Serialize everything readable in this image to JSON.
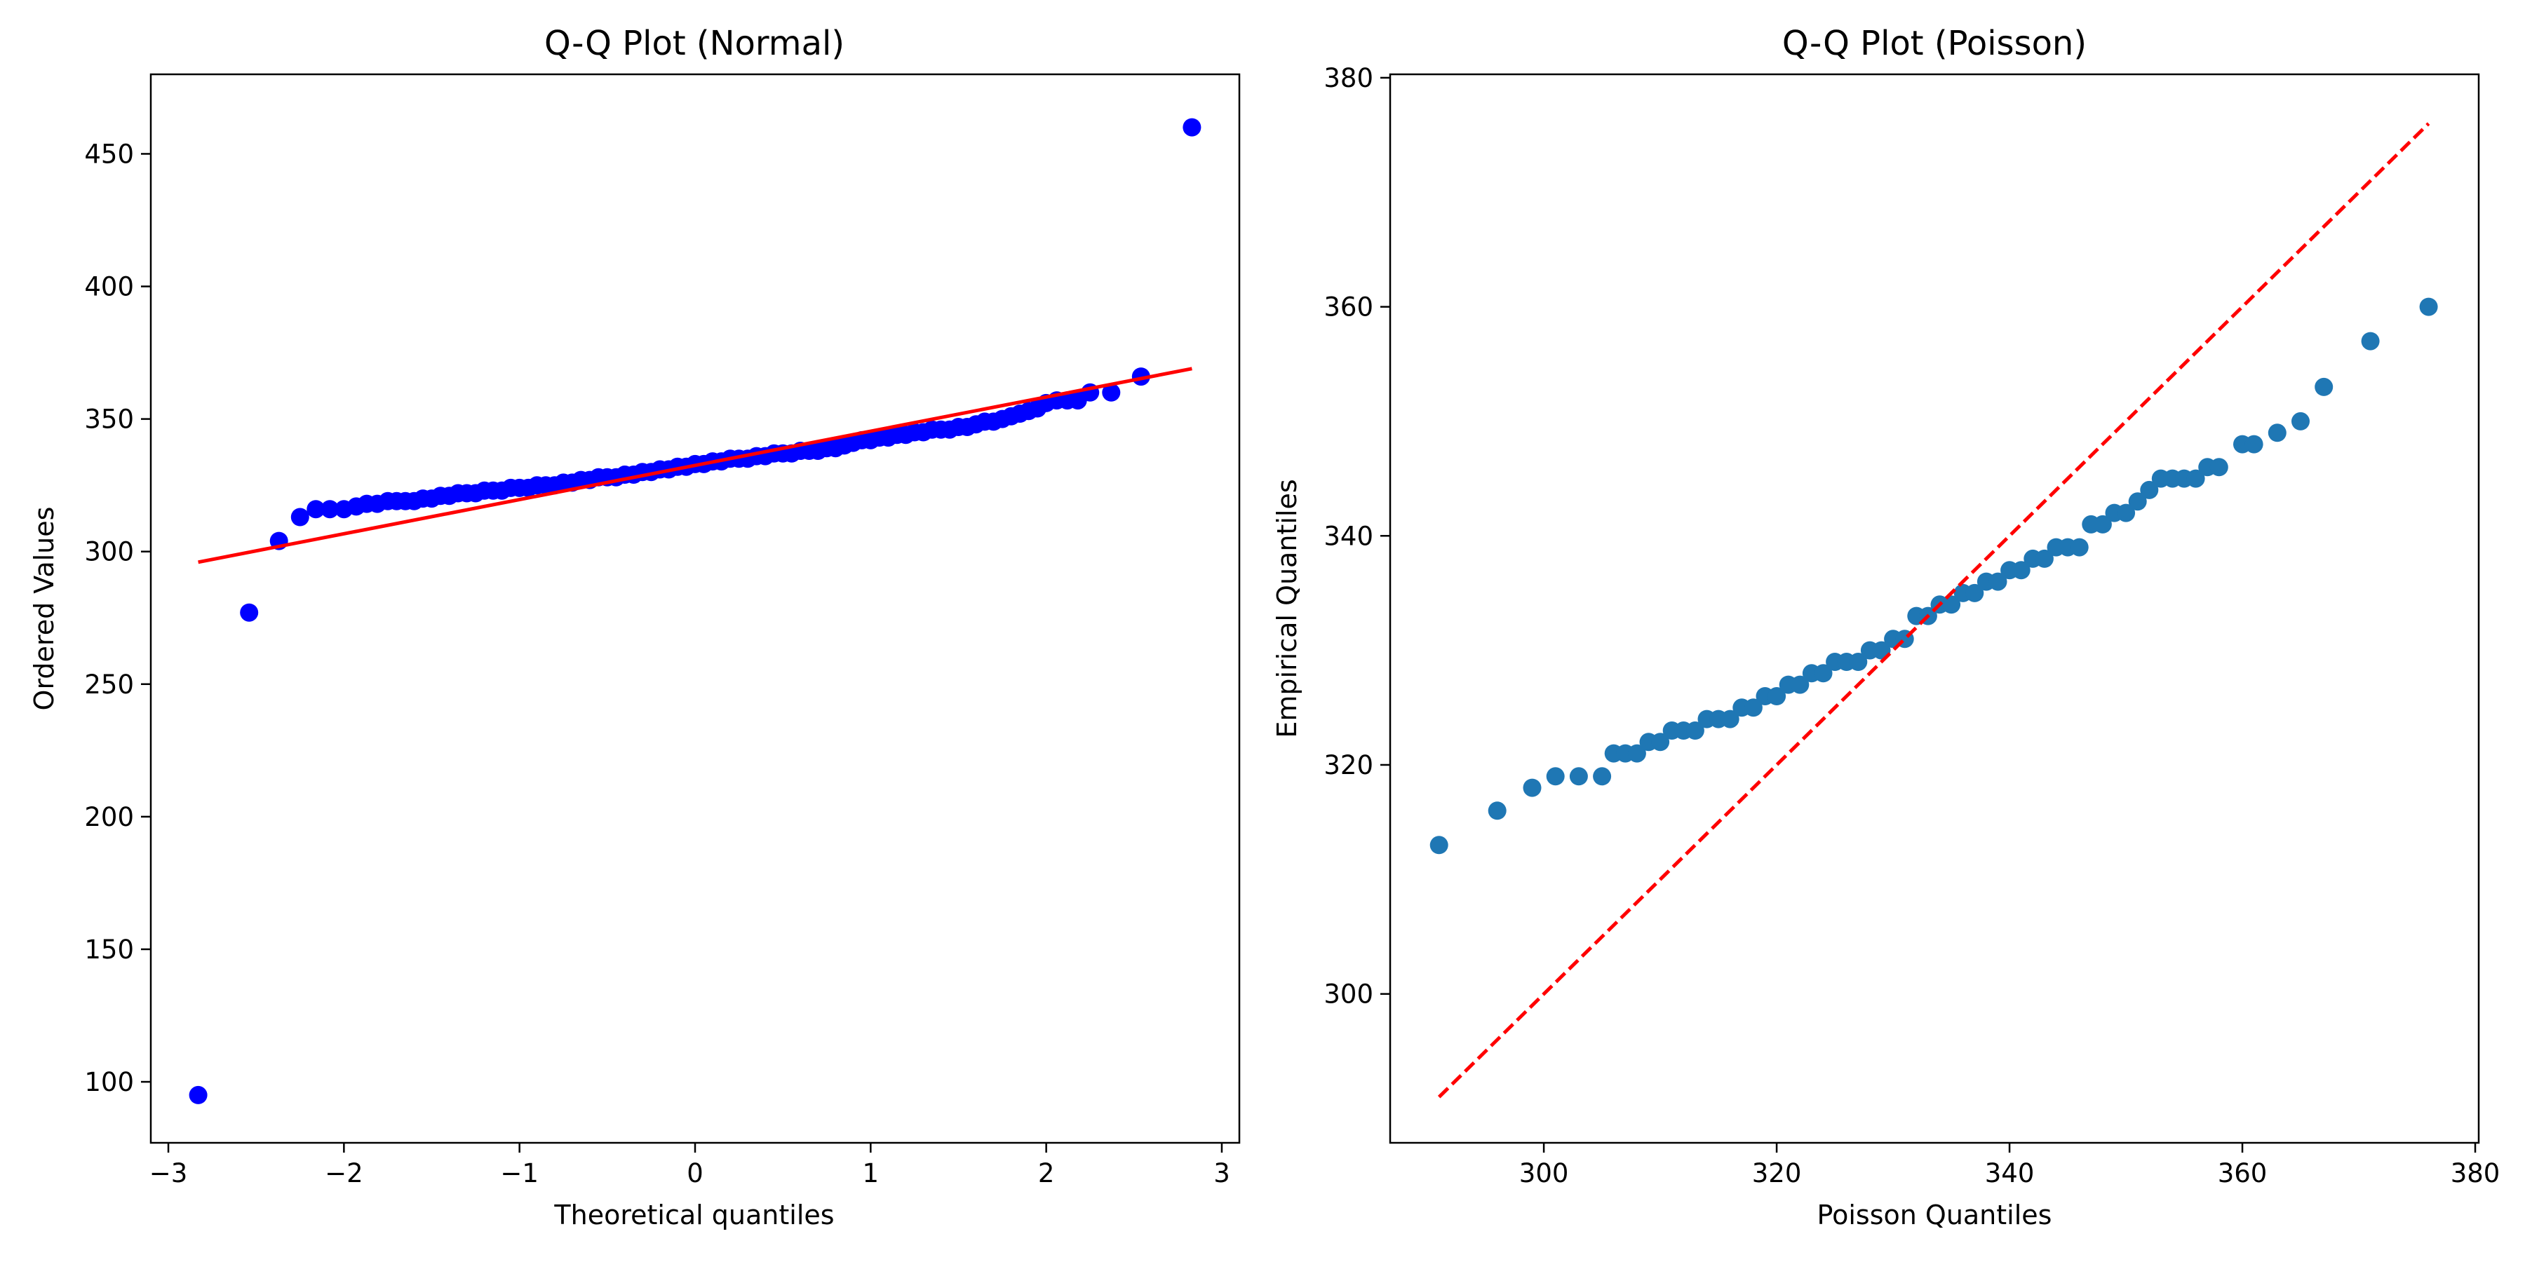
{
  "chart_data": [
    {
      "type": "scatter",
      "title": "Q-Q Plot (Normal)",
      "xlabel": "Theoretical quantiles",
      "ylabel": "Ordered Values",
      "xlim": [
        -3.1,
        3.1
      ],
      "ylim": [
        77,
        480
      ],
      "xticks": [
        -3,
        -2,
        -1,
        0,
        1,
        2,
        3
      ],
      "xtick_labels": [
        "−3",
        "−2",
        "−1",
        "0",
        "1",
        "2",
        "3"
      ],
      "yticks": [
        100,
        150,
        200,
        250,
        300,
        350,
        400,
        450
      ],
      "ytick_labels": [
        "100",
        "150",
        "200",
        "250",
        "300",
        "350",
        "400",
        "450"
      ],
      "grid": false,
      "series": [
        {
          "kind": "points",
          "color": "#0000ff",
          "x": [
            -2.83,
            -2.54,
            -2.37,
            -2.25,
            -2.16,
            -2.08,
            -2.0,
            -1.93,
            -1.87,
            -1.81,
            -1.75,
            -1.7,
            -1.65,
            -1.6,
            -1.55,
            -1.5,
            -1.45,
            -1.4,
            -1.35,
            -1.3,
            -1.25,
            -1.2,
            -1.15,
            -1.1,
            -1.05,
            -1.0,
            -0.95,
            -0.9,
            -0.85,
            -0.8,
            -0.75,
            -0.7,
            -0.65,
            -0.6,
            -0.55,
            -0.5,
            -0.45,
            -0.4,
            -0.35,
            -0.3,
            -0.25,
            -0.2,
            -0.15,
            -0.1,
            -0.05,
            0.0,
            0.05,
            0.1,
            0.15,
            0.2,
            0.25,
            0.3,
            0.35,
            0.4,
            0.45,
            0.5,
            0.55,
            0.6,
            0.65,
            0.7,
            0.75,
            0.8,
            0.85,
            0.9,
            0.95,
            1.0,
            1.05,
            1.1,
            1.15,
            1.2,
            1.25,
            1.3,
            1.35,
            1.4,
            1.45,
            1.5,
            1.55,
            1.6,
            1.65,
            1.7,
            1.75,
            1.8,
            1.85,
            1.9,
            1.95,
            2.0,
            2.06,
            2.12,
            2.18,
            2.25,
            2.37,
            2.54,
            2.83
          ],
          "y": [
            95,
            277,
            304,
            313,
            316,
            316,
            316,
            317,
            318,
            318,
            319,
            319,
            319,
            319,
            320,
            320,
            321,
            321,
            322,
            322,
            322,
            323,
            323,
            323,
            324,
            324,
            324,
            325,
            325,
            325,
            326,
            326,
            327,
            327,
            328,
            328,
            328,
            329,
            329,
            330,
            330,
            331,
            331,
            332,
            332,
            333,
            333,
            334,
            334,
            335,
            335,
            335,
            336,
            336,
            337,
            337,
            337,
            338,
            338,
            338,
            339,
            339,
            340,
            341,
            342,
            342,
            343,
            343,
            344,
            344,
            345,
            345,
            346,
            346,
            346,
            347,
            347,
            348,
            349,
            349,
            350,
            351,
            352,
            353,
            354,
            356,
            357,
            357,
            357,
            360,
            360,
            366,
            460
          ]
        },
        {
          "kind": "line",
          "color": "#ff0000",
          "style": "solid",
          "x": [
            -2.83,
            2.83
          ],
          "y": [
            296,
            369
          ]
        }
      ]
    },
    {
      "type": "scatter",
      "title": "Q-Q Plot (Poisson)",
      "xlabel": "Poisson Quantiles",
      "ylabel": "Empirical Quantiles",
      "xlim": [
        286.8,
        380.3
      ],
      "ylim": [
        287,
        380.3
      ],
      "xticks": [
        300,
        320,
        340,
        360,
        380
      ],
      "xtick_labels": [
        "300",
        "320",
        "340",
        "360",
        "380"
      ],
      "yticks": [
        300,
        320,
        340,
        360,
        380
      ],
      "ytick_labels": [
        "300",
        "320",
        "340",
        "360",
        "380"
      ],
      "grid": false,
      "series": [
        {
          "kind": "points",
          "color": "#1f77b4",
          "x": [
            291,
            296,
            299,
            301,
            303,
            305,
            306,
            307,
            308,
            309,
            310,
            311,
            312,
            313,
            314,
            315,
            316,
            317,
            318,
            319,
            320,
            321,
            322,
            323,
            324,
            325,
            326,
            327,
            328,
            329,
            330,
            331,
            332,
            333,
            334,
            335,
            336,
            337,
            338,
            339,
            340,
            341,
            342,
            343,
            344,
            345,
            346,
            347,
            348,
            349,
            350,
            351,
            352,
            353,
            354,
            355,
            356,
            357,
            358,
            360,
            361,
            363,
            365,
            367,
            371,
            376
          ],
          "y": [
            313,
            316,
            318,
            319,
            319,
            319,
            321,
            321,
            321,
            322,
            322,
            323,
            323,
            323,
            324,
            324,
            324,
            325,
            325,
            326,
            326,
            327,
            327,
            328,
            328,
            329,
            329,
            329,
            330,
            330,
            331,
            331,
            333,
            333,
            334,
            334,
            335,
            335,
            336,
            336,
            337,
            337,
            338,
            338,
            339,
            339,
            339,
            341,
            341,
            342,
            342,
            343,
            344,
            345,
            345,
            345,
            345,
            346,
            346,
            348,
            348,
            349,
            350,
            353,
            357,
            360
          ]
        },
        {
          "kind": "line",
          "color": "#ff0000",
          "style": "dashed",
          "x": [
            291,
            376
          ],
          "y": [
            291,
            376
          ]
        }
      ]
    }
  ]
}
